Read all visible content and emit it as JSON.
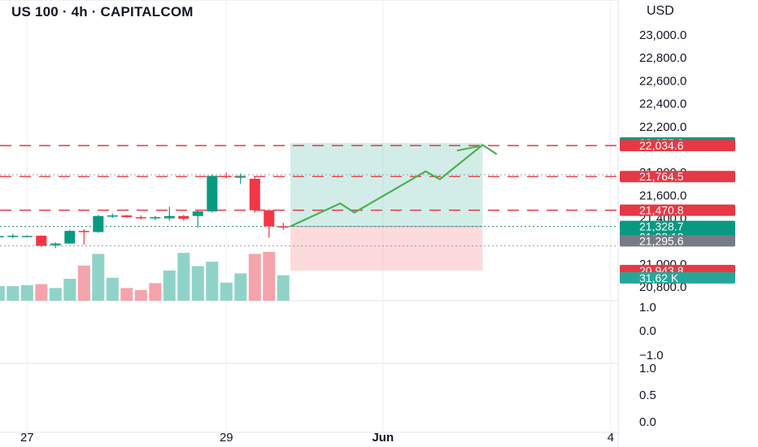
{
  "header": {
    "symbol_title": "US 100 · 4h · CAPITALCOM",
    "currency": "USD"
  },
  "chart_data": {
    "type": "candlestick",
    "price_axis": {
      "ticks": [
        "23,000.0",
        "22,800.0",
        "22,600.0",
        "22,400.0",
        "22,200.0",
        "21,800.0",
        "21,600.0",
        "21,400.0",
        "21,000.0",
        "20,800.0"
      ],
      "range": [
        20800,
        23150
      ]
    },
    "time_axis": {
      "labels": [
        {
          "text": "27",
          "t": 2
        },
        {
          "text": "29",
          "t": 16
        },
        {
          "text": "Jun",
          "t": 27
        },
        {
          "text": "4",
          "t": 43
        }
      ]
    },
    "candles": [
      {
        "t": 0,
        "o": 21240,
        "h": 21270,
        "l": 21215,
        "c": 21245
      },
      {
        "t": 1,
        "o": 21245,
        "h": 21265,
        "l": 21225,
        "c": 21248
      },
      {
        "t": 2,
        "o": 21245,
        "h": 21252,
        "l": 21238,
        "c": 21246
      },
      {
        "t": 3,
        "o": 21248,
        "h": 21252,
        "l": 21150,
        "c": 21160
      },
      {
        "t": 4,
        "o": 21165,
        "h": 21190,
        "l": 21140,
        "c": 21180
      },
      {
        "t": 5,
        "o": 21180,
        "h": 21300,
        "l": 21175,
        "c": 21290
      },
      {
        "t": 6,
        "o": 21290,
        "h": 21305,
        "l": 21170,
        "c": 21280
      },
      {
        "t": 7,
        "o": 21280,
        "h": 21430,
        "l": 21275,
        "c": 21420
      },
      {
        "t": 8,
        "o": 21420,
        "h": 21440,
        "l": 21405,
        "c": 21425
      },
      {
        "t": 9,
        "o": 21425,
        "h": 21430,
        "l": 21405,
        "c": 21410
      },
      {
        "t": 10,
        "o": 21410,
        "h": 21425,
        "l": 21390,
        "c": 21400
      },
      {
        "t": 11,
        "o": 21400,
        "h": 21420,
        "l": 21385,
        "c": 21410
      },
      {
        "t": 12,
        "o": 21400,
        "h": 21500,
        "l": 21380,
        "c": 21420
      },
      {
        "t": 13,
        "o": 21420,
        "h": 21430,
        "l": 21380,
        "c": 21395
      },
      {
        "t": 14,
        "o": 21420,
        "h": 21470,
        "l": 21320,
        "c": 21460
      },
      {
        "t": 15,
        "o": 21460,
        "h": 21780,
        "l": 21450,
        "c": 21770
      },
      {
        "t": 16,
        "o": 21770,
        "h": 21800,
        "l": 21750,
        "c": 21760
      },
      {
        "t": 17,
        "o": 21760,
        "h": 21790,
        "l": 21700,
        "c": 21765
      },
      {
        "t": 18,
        "o": 21745,
        "h": 21760,
        "l": 21450,
        "c": 21470
      },
      {
        "t": 19,
        "o": 21470,
        "h": 21480,
        "l": 21230,
        "c": 21330
      },
      {
        "t": 20,
        "o": 21330,
        "h": 21360,
        "l": 21300,
        "c": 21329
      }
    ],
    "volume_bars": [
      {
        "t": 0,
        "v": 0.3,
        "up": true
      },
      {
        "t": 1,
        "v": 0.3,
        "up": true
      },
      {
        "t": 2,
        "v": 0.32,
        "up": true
      },
      {
        "t": 3,
        "v": 0.34,
        "up": false
      },
      {
        "t": 4,
        "v": 0.26,
        "up": true
      },
      {
        "t": 5,
        "v": 0.45,
        "up": true
      },
      {
        "t": 6,
        "v": 0.72,
        "up": false
      },
      {
        "t": 7,
        "v": 0.96,
        "up": true
      },
      {
        "t": 8,
        "v": 0.47,
        "up": true
      },
      {
        "t": 9,
        "v": 0.26,
        "up": false
      },
      {
        "t": 10,
        "v": 0.22,
        "up": false
      },
      {
        "t": 11,
        "v": 0.36,
        "up": false
      },
      {
        "t": 12,
        "v": 0.62,
        "up": true
      },
      {
        "t": 13,
        "v": 0.98,
        "up": true
      },
      {
        "t": 14,
        "v": 0.71,
        "up": true
      },
      {
        "t": 15,
        "v": 0.8,
        "up": true
      },
      {
        "t": 16,
        "v": 0.37,
        "up": true
      },
      {
        "t": 17,
        "v": 0.56,
        "up": true
      },
      {
        "t": 18,
        "v": 0.96,
        "up": false
      },
      {
        "t": 19,
        "v": 1.0,
        "up": false
      },
      {
        "t": 20,
        "v": 0.52,
        "up": true
      }
    ],
    "horizontal_lines": [
      {
        "price": 22034.6,
        "style": "dashed",
        "color": "#e53945"
      },
      {
        "price": 21764.5,
        "style": "dashed",
        "color": "#e53945"
      },
      {
        "price": 21470.8,
        "style": "dashed",
        "color": "#e53945"
      },
      {
        "price": 21780,
        "style": "dotted",
        "color": "#9aa1ac"
      },
      {
        "price": 21328.7,
        "style": "dotted",
        "color": "#1a8f7a"
      },
      {
        "price": 21160,
        "style": "dotted",
        "color": "#9aa1ac"
      }
    ],
    "position_tool": {
      "t_start": 20.5,
      "t_end": 34,
      "entry": 21328.7,
      "target": 22057.8,
      "stop": 20943.8
    },
    "forecast_path": [
      {
        "t": 20.5,
        "p": 21330
      },
      {
        "t": 24,
        "p": 21530
      },
      {
        "t": 25,
        "p": 21450
      },
      {
        "t": 30,
        "p": 21810
      },
      {
        "t": 31,
        "p": 21740
      },
      {
        "t": 34,
        "p": 22040
      },
      {
        "t": 35,
        "p": 21960
      }
    ],
    "forecast_tail": [
      {
        "t": 32.2,
        "p": 21990
      },
      {
        "t": 33.8,
        "p": 22030
      }
    ],
    "price_labels": [
      {
        "text": "22,057.8",
        "price": 22057.8,
        "bg": "#089981",
        "offset": 0
      },
      {
        "text": "22,034.6",
        "price": 22034.6,
        "bg": "#e53945",
        "offset": 0
      },
      {
        "text": "21,764.5",
        "price": 21764.5,
        "bg": "#e53945",
        "offset": 0
      },
      {
        "text": "21,470.8",
        "price": 21470.8,
        "bg": "#e53945",
        "offset": 0
      },
      {
        "text": "21,328.7",
        "price": 21328.7,
        "bg": "#089981",
        "offset": 0
      },
      {
        "text": "01:23:12",
        "price": 21328.7,
        "bg": "#089981",
        "offset": 13
      },
      {
        "text": "21,295.6",
        "price": 21295.6,
        "bg": "#787b86",
        "offset": 13
      },
      {
        "text": "20,943.8",
        "price": 20943.8,
        "bg": "#e53945",
        "offset": 0
      },
      {
        "text": "31,62 K",
        "price": 20880,
        "bg": "#26a69a",
        "offset": 0
      }
    ],
    "indicator_panes": [
      {
        "ticks": [
          "1.0",
          "0.0",
          "−1.0"
        ]
      },
      {
        "ticks": [
          "1.0",
          "0.5",
          "0.0"
        ]
      }
    ]
  }
}
